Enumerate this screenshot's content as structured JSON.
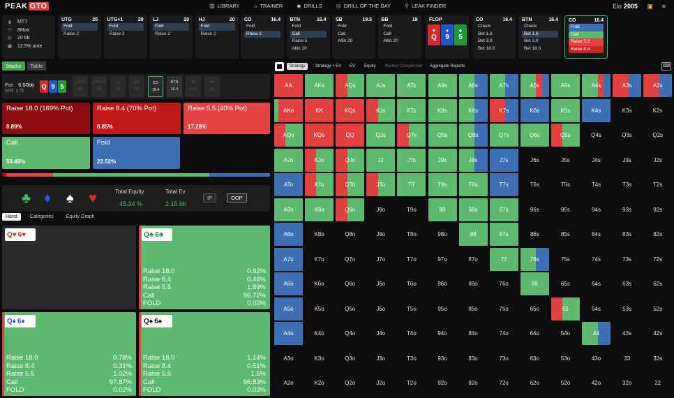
{
  "brand": {
    "logo_a": "PEAK",
    "logo_b": "GTO"
  },
  "nav": [
    {
      "icon": "book-icon",
      "glyph": "▥",
      "label": "LIBRARY"
    },
    {
      "icon": "controller-icon",
      "glyph": "⌂",
      "label": "TRAINER"
    },
    {
      "icon": "drills-icon",
      "glyph": "◆",
      "label": "DRILLS"
    },
    {
      "icon": "clock-icon",
      "glyph": "◎",
      "label": "DRILL OF THE DAY"
    },
    {
      "icon": "magnifier-icon",
      "glyph": "⚲",
      "label": "LEAK FINDER"
    }
  ],
  "elo": {
    "label": "Elo",
    "value": "2005"
  },
  "game_info": [
    "MTT",
    "8Max",
    "20 bb",
    "12.5% ante"
  ],
  "positions": [
    {
      "name": "UTG",
      "stack": "20",
      "opts": [
        {
          "t": "Fold",
          "c": "sel"
        },
        {
          "t": "Raise 2",
          "c": ""
        }
      ]
    },
    {
      "name": "UTG+1",
      "stack": "20",
      "opts": [
        {
          "t": "Fold",
          "c": "sel"
        },
        {
          "t": "Raise 2",
          "c": ""
        }
      ]
    },
    {
      "name": "LJ",
      "stack": "20",
      "opts": [
        {
          "t": "Fold",
          "c": "sel"
        },
        {
          "t": "Raise 2",
          "c": ""
        }
      ]
    },
    {
      "name": "HJ",
      "stack": "20",
      "opts": [
        {
          "t": "Fold",
          "c": "sel"
        },
        {
          "t": "Raise 2",
          "c": ""
        }
      ]
    },
    {
      "name": "CO",
      "stack": "16.4",
      "opts": [
        {
          "t": "Fold",
          "c": ""
        },
        {
          "t": "Raise 2",
          "c": "sel"
        }
      ]
    },
    {
      "name": "BTN",
      "stack": "16.4",
      "opts": [
        {
          "t": "Fold",
          "c": ""
        },
        {
          "t": "Call",
          "c": "sel"
        },
        {
          "t": "Raise 5",
          "c": ""
        },
        {
          "t": "Allin 20",
          "c": ""
        }
      ]
    },
    {
      "name": "SB",
      "stack": "19.5",
      "opts": [
        {
          "t": "Fold",
          "c": ""
        },
        {
          "t": "Call",
          "c": ""
        },
        {
          "t": "Allin 20",
          "c": ""
        }
      ]
    },
    {
      "name": "BB",
      "stack": "19",
      "opts": [
        {
          "t": "Fold",
          "c": ""
        },
        {
          "t": "Call",
          "c": ""
        },
        {
          "t": "Allin 20",
          "c": ""
        }
      ]
    }
  ],
  "flop": {
    "title": "FLOP",
    "cards": [
      {
        "rank": "Q",
        "suit": "♥",
        "color": "#d42c2c"
      },
      {
        "rank": "9",
        "suit": "♦",
        "color": "#2255c8"
      },
      {
        "rank": "5",
        "suit": "♣",
        "color": "#1e9a3a"
      }
    ]
  },
  "post": [
    {
      "name": "CO",
      "stack": "16.4",
      "opts": [
        {
          "t": "Check",
          "c": ""
        },
        {
          "t": "Bet 1.6",
          "c": ""
        },
        {
          "t": "Bet 3.9",
          "c": ""
        },
        {
          "t": "Bet 18.0",
          "c": ""
        }
      ]
    },
    {
      "name": "BTN",
      "stack": "16.4",
      "opts": [
        {
          "t": "Check",
          "c": ""
        },
        {
          "t": "Bet 1.6",
          "c": "sel"
        },
        {
          "t": "Bet 3.9",
          "c": ""
        },
        {
          "t": "Bet 18.0",
          "c": ""
        }
      ]
    },
    {
      "name": "CO",
      "stack": "16.4",
      "opts": [
        {
          "t": "Fold",
          "c": "b"
        },
        {
          "t": "Call",
          "c": "g"
        },
        {
          "t": "Raise 5.5",
          "c": "r"
        },
        {
          "t": "Raise 8.4",
          "c": "r2"
        }
      ]
    }
  ],
  "left_tabs": [
    "Stacks",
    "Table"
  ],
  "pot": {
    "label": "Pot",
    "value": "6.50bb",
    "spr": "SPR: 2.75",
    "cards": [
      {
        "r": "Q",
        "c": "#d42c2c"
      },
      {
        "r": "9",
        "c": "#2255c8"
      },
      {
        "r": "5",
        "c": "#1e9a3a"
      }
    ]
  },
  "seats": [
    {
      "n": "UTG",
      "s": "20",
      "st": ""
    },
    {
      "n": "UTG+1",
      "s": "20",
      "st": ""
    },
    {
      "n": "LJ",
      "s": "20",
      "st": ""
    },
    {
      "n": "HJ",
      "s": "20",
      "st": ""
    },
    {
      "n": "CO",
      "s": "16.4",
      "st": "hero"
    },
    {
      "n": "BTN",
      "s": "16.4",
      "st": "act"
    },
    {
      "n": "SB",
      "s": "19.5",
      "st": ""
    },
    {
      "n": "BB",
      "s": "19",
      "st": ""
    }
  ],
  "actions": [
    {
      "label": "Raise 18.0 (169% Pot)",
      "pct": "0.89%",
      "color": "#8b0d0d"
    },
    {
      "label": "Raise 8.4 (70% Pot)",
      "pct": "0.85%",
      "color": "#c11919"
    },
    {
      "label": "Raise 5.5 (40% Pot)",
      "pct": "17.28%",
      "color": "#e64444"
    },
    {
      "label": "Call",
      "pct": "58.46%",
      "color": "#5cb96d"
    },
    {
      "label": "Fold",
      "pct": "22.52%",
      "color": "#3d6fb5"
    }
  ],
  "freq": [
    {
      "v": 0.0089,
      "c": "#8b0d0d"
    },
    {
      "v": 0.0085,
      "c": "#c11919"
    },
    {
      "v": 0.1728,
      "c": "#e64444"
    },
    {
      "v": 0.5846,
      "c": "#5cb96d"
    },
    {
      "v": 0.2252,
      "c": "#3d6fb5"
    }
  ],
  "equity": {
    "eq_label": "Total Equity",
    "eq_value": "45.34 %",
    "ev_label": "Total Ev",
    "ev_value": "2.15 bb",
    "ip": "IP",
    "oop": "OOP",
    "suits": [
      {
        "g": "♣",
        "c": "#3fbf5f"
      },
      {
        "g": "♦",
        "c": "#2a55d8"
      },
      {
        "g": "♠",
        "c": "#ffffff"
      },
      {
        "g": "♥",
        "c": "#d42c2c"
      }
    ]
  },
  "sub_tabs": [
    "Hand",
    "Categories",
    "Equity Graph"
  ],
  "hands": [
    {
      "r1": "Q",
      "s1": "♥",
      "c1": "r",
      "r2": "6",
      "s2": "♥",
      "c2": "r",
      "dark": true,
      "rows": []
    },
    {
      "r1": "Q",
      "s1": "♣",
      "c1": "gr",
      "r2": "6",
      "s2": "♣",
      "c2": "gr",
      "dark": false,
      "rows": [
        [
          "Raise 18.0",
          "0.92%"
        ],
        [
          "Raise 8.4",
          "0.46%"
        ],
        [
          "Raise 5.5",
          "1.89%"
        ],
        [
          "Call",
          "96.72%"
        ],
        [
          "FOLD",
          "0.02%"
        ]
      ]
    },
    {
      "r1": "Q",
      "s1": "♦",
      "c1": "bl",
      "r2": "6",
      "s2": "♦",
      "c2": "bl",
      "dark": false,
      "rows": [
        [
          "Raise 18.0",
          "0.78%"
        ],
        [
          "Raise 8.4",
          "0.31%"
        ],
        [
          "Raise 5.5",
          "1.02%"
        ],
        [
          "Call",
          "97.87%"
        ],
        [
          "FOLD",
          "0.02%"
        ]
      ]
    },
    {
      "r1": "Q",
      "s1": "♠",
      "c1": "",
      "r2": "6",
      "s2": "♠",
      "c2": "",
      "dark": false,
      "rows": [
        [
          "Raise 18.0",
          "1.14%"
        ],
        [
          "Raise 8.4",
          "0.51%"
        ],
        [
          "Raise 5.5",
          "1.5%"
        ],
        [
          "Call",
          "96.83%"
        ],
        [
          "FOLD",
          "0.03%"
        ]
      ]
    }
  ],
  "right_tabs": [
    {
      "t": "Strategy",
      "s": "on"
    },
    {
      "t": "Strategy + EV",
      "s": ""
    },
    {
      "t": "EV",
      "s": ""
    },
    {
      "t": "Equity",
      "s": ""
    },
    {
      "t": "Runout Comparison",
      "s": "dim"
    },
    {
      "t": "Aggregate Reports",
      "s": ""
    }
  ],
  "ranks": [
    "A",
    "K",
    "Q",
    "J",
    "T",
    "9",
    "8",
    "7",
    "6",
    "5",
    "4",
    "3",
    "2"
  ],
  "matrix": [
    [
      "r",
      "g",
      "rg",
      "g",
      "g",
      "g",
      "gb",
      "gb",
      "grb",
      "g",
      "grb",
      "rb",
      "rb"
    ],
    [
      "gr",
      "r",
      "r",
      "rg",
      "g",
      "g",
      "gb",
      "rb",
      "b",
      "g",
      "b",
      "",
      ""
    ],
    [
      "rg",
      "r",
      "r",
      "g",
      "rg",
      "g",
      "gb",
      "g",
      "g",
      "rg",
      "",
      "",
      ""
    ],
    [
      "g",
      "rg",
      "rg",
      "g",
      "g",
      "g",
      "gb",
      "b",
      "",
      "",
      "",
      "",
      ""
    ],
    [
      "b",
      "rg",
      "rg",
      "rg",
      "g",
      "g",
      "g",
      "b",
      "",
      "",
      "",
      "",
      ""
    ],
    [
      "g",
      "g",
      "rg",
      "",
      "",
      "g",
      "g",
      "g",
      "",
      "",
      "",
      "",
      ""
    ],
    [
      "b",
      "",
      "",
      "",
      "",
      "",
      "g",
      "g",
      "",
      "",
      "",
      "",
      ""
    ],
    [
      "b",
      "",
      "",
      "",
      "",
      "",
      "",
      "g",
      "gb",
      "",
      "",
      "",
      ""
    ],
    [
      "b",
      "",
      "",
      "",
      "",
      "",
      "",
      "",
      "g",
      "",
      "",
      "",
      ""
    ],
    [
      "b",
      "",
      "",
      "",
      "",
      "",
      "",
      "",
      "",
      "rg",
      "",
      "",
      ""
    ],
    [
      "b",
      "",
      "",
      "",
      "",
      "",
      "",
      "",
      "",
      "",
      "gb",
      "",
      ""
    ],
    [
      "",
      "",
      "",
      "",
      "",
      "",
      "",
      "",
      "",
      "",
      "",
      "",
      ""
    ],
    [
      "",
      "",
      "",
      "",
      "",
      "",
      "",
      "",
      "",
      "",
      "",
      "",
      ""
    ]
  ]
}
